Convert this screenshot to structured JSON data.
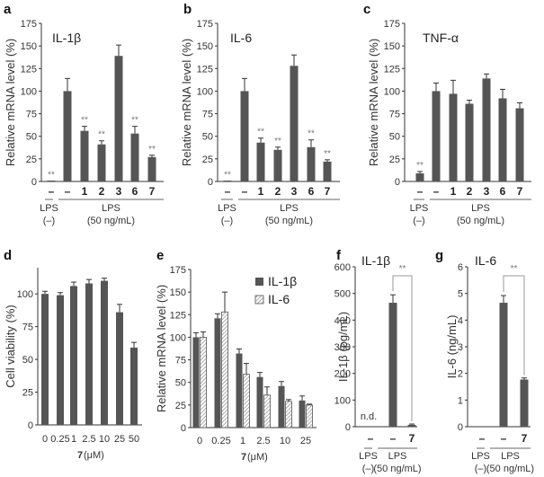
{
  "chart_data": [
    {
      "panel": "a",
      "type": "bar",
      "title": "IL-1β",
      "ylabel": "Relative mRNA level (%)",
      "ylim": [
        0,
        175
      ],
      "yticks": [
        0,
        25,
        50,
        75,
        100,
        125,
        150,
        175
      ],
      "categories": [
        "–",
        "–",
        "1",
        "2",
        "3",
        "6",
        "7"
      ],
      "values": [
        0.5,
        100,
        56,
        41,
        139,
        53,
        27
      ],
      "errors": [
        0,
        14,
        5,
        4,
        12,
        8,
        2
      ],
      "significance": [
        "**",
        "",
        "**",
        "**",
        "",
        "**",
        "**"
      ],
      "groups": [
        {
          "label": "LPS",
          "sub": "(–)",
          "span": [
            0,
            0
          ]
        },
        {
          "label": "LPS",
          "sub": "(50 ng/mL)",
          "span": [
            1,
            6
          ]
        }
      ]
    },
    {
      "panel": "b",
      "type": "bar",
      "title": "IL-6",
      "ylabel": "Relative mRNA level (%)",
      "ylim": [
        0,
        175
      ],
      "yticks": [
        0,
        25,
        50,
        75,
        100,
        125,
        150,
        175
      ],
      "categories": [
        "–",
        "–",
        "1",
        "2",
        "3",
        "6",
        "7"
      ],
      "values": [
        0.5,
        100,
        43,
        35,
        128,
        38,
        22
      ],
      "errors": [
        0,
        14,
        5,
        3,
        12,
        8,
        2
      ],
      "significance": [
        "**",
        "",
        "**",
        "**",
        "",
        "**",
        "**"
      ],
      "groups": [
        {
          "label": "LPS",
          "sub": "(–)",
          "span": [
            0,
            0
          ]
        },
        {
          "label": "LPS",
          "sub": "(50 ng/mL)",
          "span": [
            1,
            6
          ]
        }
      ]
    },
    {
      "panel": "c",
      "type": "bar",
      "title": "TNF-α",
      "ylabel": "Relative mRNA level (%)",
      "ylim": [
        0,
        175
      ],
      "yticks": [
        0,
        25,
        50,
        75,
        100,
        125,
        150,
        175
      ],
      "categories": [
        "–",
        "–",
        "1",
        "2",
        "3",
        "6",
        "7"
      ],
      "values": [
        9,
        100,
        97,
        86,
        114,
        92,
        81
      ],
      "errors": [
        2,
        9,
        15,
        4,
        5,
        10,
        6
      ],
      "significance": [
        "**",
        "",
        "",
        "",
        "",
        "",
        ""
      ],
      "groups": [
        {
          "label": "LPS",
          "sub": "(–)",
          "span": [
            0,
            0
          ]
        },
        {
          "label": "LPS",
          "sub": "(50 ng/mL)",
          "span": [
            1,
            6
          ]
        }
      ]
    },
    {
      "panel": "d",
      "type": "bar",
      "title": "",
      "ylabel": "Cell viability (%)",
      "xlabel_bold": "7",
      "xlabel": " (μM)",
      "ylim": [
        0,
        120
      ],
      "yticks": [
        0,
        25,
        50,
        75,
        100
      ],
      "categories": [
        "0",
        "0.25",
        "1",
        "2.5",
        "10",
        "25",
        "50"
      ],
      "values": [
        100,
        99,
        106,
        108,
        110,
        86,
        59
      ],
      "errors": [
        2,
        2,
        3,
        3,
        2,
        6,
        4
      ]
    },
    {
      "panel": "e",
      "type": "bar",
      "title": "",
      "ylabel": "Relative mRNA level (%)",
      "xlabel_bold": "7",
      "xlabel": " (μM)",
      "ylim": [
        0,
        175
      ],
      "yticks": [
        0,
        25,
        50,
        75,
        100,
        125,
        150,
        175
      ],
      "categories": [
        "0",
        "0.25",
        "1",
        "2.5",
        "10",
        "25"
      ],
      "legend": "top-right",
      "series": [
        {
          "name": "IL-1β",
          "style": "solid",
          "values": [
            100,
            121,
            82,
            56,
            46,
            30
          ],
          "errors": [
            5,
            5,
            5,
            5,
            5,
            5
          ]
        },
        {
          "name": "IL-6",
          "style": "hatched",
          "values": [
            100,
            128,
            59,
            36,
            29,
            25
          ],
          "errors": [
            6,
            22,
            12,
            9,
            2,
            1
          ]
        }
      ]
    },
    {
      "panel": "f",
      "type": "bar",
      "title": "IL-1β",
      "ylabel": "IL-1β (pg/mL)",
      "ylim": [
        0,
        600
      ],
      "yticks": [
        0,
        100,
        200,
        300,
        400,
        500,
        600
      ],
      "categories": [
        "–",
        "–",
        "7"
      ],
      "values": [
        0,
        465,
        7
      ],
      "errors": [
        0,
        30,
        3
      ],
      "annotations": [
        "n.d.",
        "",
        ""
      ],
      "bracket": {
        "from": 1,
        "to": 2,
        "label": "**"
      },
      "groups": [
        {
          "label": "LPS",
          "sub": "(–)",
          "span": [
            0,
            0
          ]
        },
        {
          "label": "LPS",
          "sub": "(50 ng/mL)",
          "span": [
            1,
            2
          ]
        }
      ]
    },
    {
      "panel": "g",
      "type": "bar",
      "title": "IL-6",
      "ylabel": "IL-6 (ng/mL)",
      "ylim": [
        0,
        6
      ],
      "yticks": [
        0,
        1,
        2,
        3,
        4,
        5,
        6
      ],
      "categories": [
        "–",
        "–",
        "7"
      ],
      "values": [
        0,
        4.65,
        1.77
      ],
      "errors": [
        0,
        0.27,
        0.06
      ],
      "bracket": {
        "from": 1,
        "to": 2,
        "label": "**"
      },
      "groups": [
        {
          "label": "LPS",
          "sub": "(–)",
          "span": [
            0,
            0
          ]
        },
        {
          "label": "LPS",
          "sub": "(50 ng/mL)",
          "span": [
            1,
            2
          ]
        }
      ]
    }
  ],
  "colors": {
    "bar": "#555555",
    "axis": "#333333",
    "star": "#777777",
    "bracket": "#999999"
  }
}
